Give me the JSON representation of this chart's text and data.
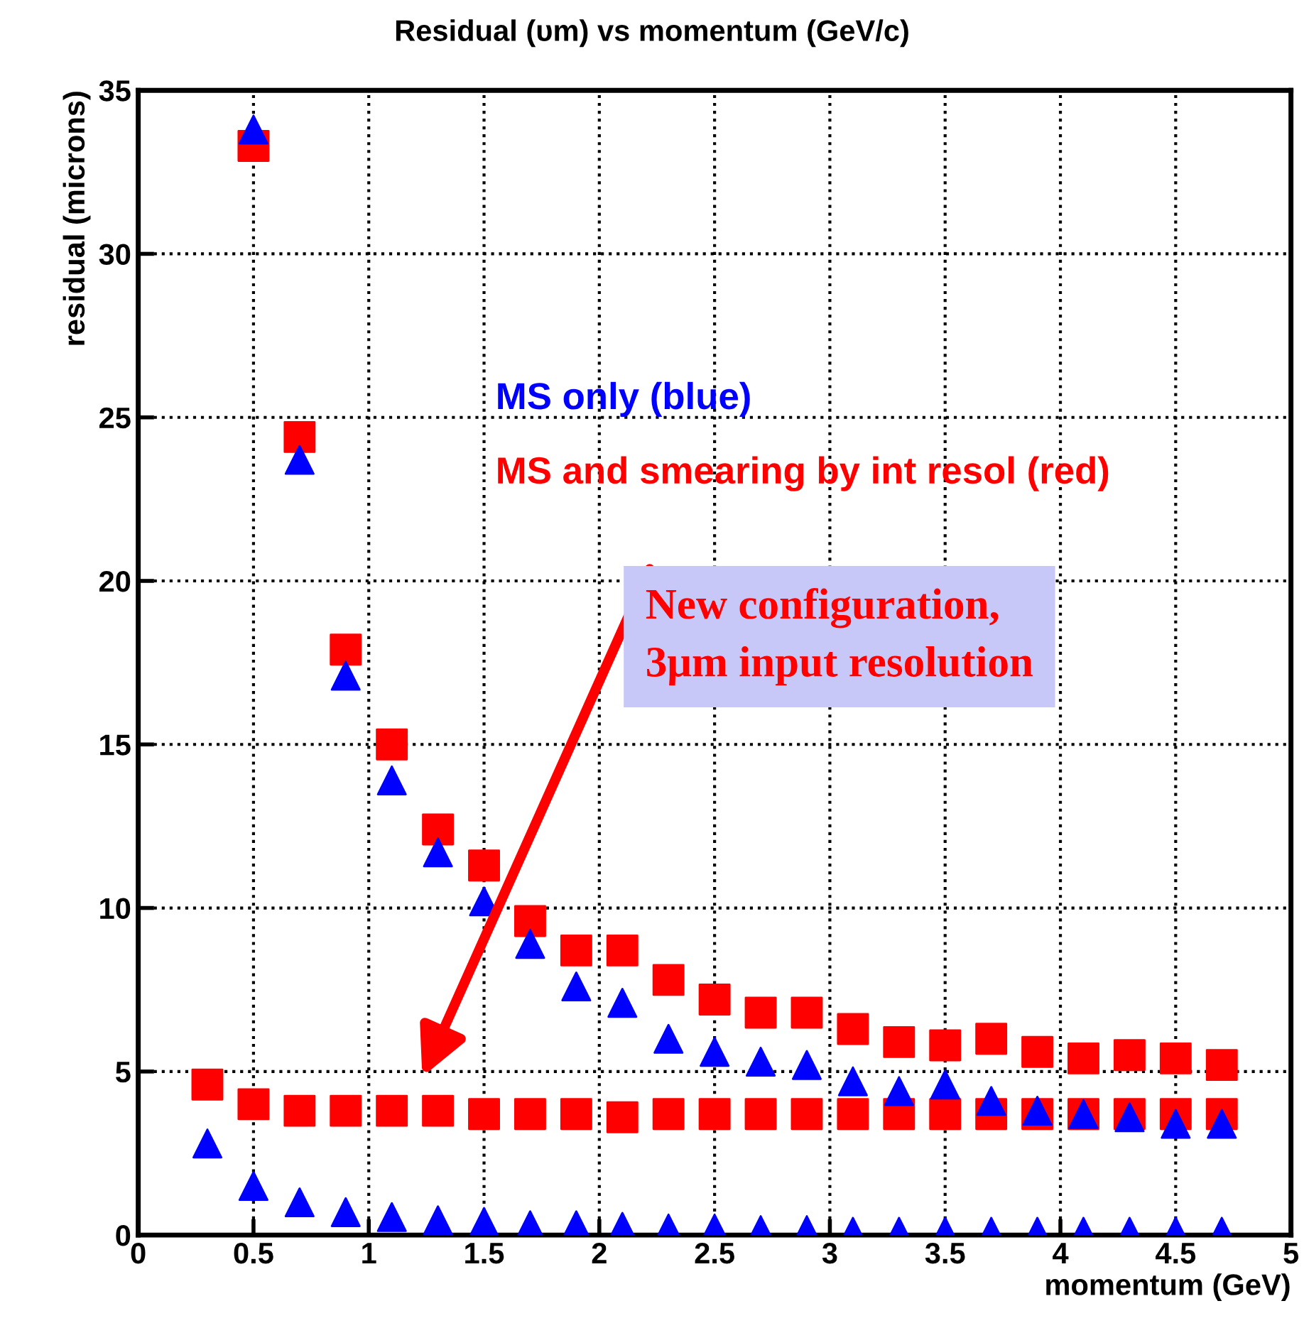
{
  "chart_data": {
    "type": "scatter",
    "title": "Residual (υm) vs momentum (GeV/c)",
    "xlabel": "momentum (GeV)",
    "ylabel": "residual (microns)",
    "x": [
      0.3,
      0.5,
      0.7,
      0.9,
      1.1,
      1.3,
      1.5,
      1.7,
      1.9,
      2.1,
      2.3,
      2.5,
      2.7,
      2.9,
      3.1,
      3.3,
      3.5,
      3.7,
      3.9,
      4.1,
      4.3,
      4.5,
      4.7
    ],
    "series": [
      {
        "color": "#0000ff",
        "marker": "triangle",
        "values": [
          null,
          33.8,
          23.7,
          17.1,
          13.9,
          11.7,
          10.2,
          8.9,
          7.6,
          7.1,
          6.0,
          5.6,
          5.3,
          5.2,
          4.7,
          4.4,
          4.6,
          4.1,
          3.8,
          3.7,
          3.6,
          3.4,
          3.4
        ]
      },
      {
        "color": "#ff0000",
        "marker": "square",
        "values": [
          null,
          33.3,
          24.4,
          17.9,
          15.0,
          12.4,
          11.3,
          9.6,
          8.7,
          8.7,
          7.8,
          7.2,
          6.8,
          6.8,
          6.3,
          5.9,
          5.8,
          6.0,
          5.6,
          5.4,
          5.5,
          5.4,
          5.2
        ]
      },
      {
        "color": "#ff0000",
        "marker": "square",
        "values": [
          4.6,
          4.0,
          3.8,
          3.8,
          3.8,
          3.8,
          3.7,
          3.7,
          3.7,
          3.6,
          3.7,
          3.7,
          3.7,
          3.7,
          3.7,
          3.7,
          3.7,
          3.7,
          3.7,
          3.7,
          3.7,
          3.7,
          3.7
        ]
      },
      {
        "color": "#0000ff",
        "marker": "triangle",
        "values": [
          2.8,
          1.5,
          1.0,
          0.7,
          0.55,
          0.45,
          0.4,
          0.3,
          0.3,
          0.25,
          0.2,
          0.2,
          0.15,
          0.15,
          0.1,
          0.1,
          0.1,
          0.1,
          0.1,
          0.1,
          0.1,
          0.1,
          0.1
        ]
      }
    ],
    "annotations": [
      "MS only (blue)",
      "MS and smearing by int resol (red)",
      "New configuration,\n3μm input resolution"
    ],
    "xlim": [
      0,
      5
    ],
    "xticks": [
      0,
      0.5,
      1,
      1.5,
      2,
      2.5,
      3,
      3.5,
      4,
      4.5,
      5
    ],
    "ylim": [
      0,
      35
    ],
    "yticks": [
      0,
      5,
      10,
      15,
      20,
      25,
      30,
      35
    ],
    "grid": true
  }
}
